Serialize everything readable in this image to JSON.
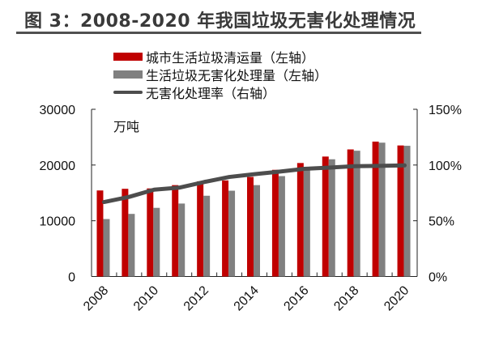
{
  "title": "图 3：2008-2020 年我国垃圾无害化处理情况",
  "chart_data": {
    "type": "bar+line",
    "categories": [
      "2008",
      "2009",
      "2010",
      "2011",
      "2012",
      "2013",
      "2014",
      "2015",
      "2016",
      "2017",
      "2018",
      "2019",
      "2020"
    ],
    "x_tick_labels": [
      "2008",
      "2010",
      "2012",
      "2014",
      "2016",
      "2018",
      "2020"
    ],
    "series": [
      {
        "name": "城市生活垃圾清运量（左轴）",
        "type": "bar",
        "axis": "left",
        "color": "#c00000",
        "values": [
          15438,
          15734,
          15805,
          16395,
          17081,
          17239,
          17860,
          19142,
          20362,
          21521,
          22802,
          24206,
          23512
        ]
      },
      {
        "name": "生活垃圾无害化处理量（左轴）",
        "type": "bar",
        "axis": "left",
        "color": "#808080",
        "values": [
          10307,
          11232,
          12318,
          13090,
          14490,
          15394,
          16394,
          18013,
          19674,
          21034,
          22565,
          24013,
          23452
        ]
      },
      {
        "name": "无害化处理率（右轴）",
        "type": "line",
        "axis": "right",
        "color": "#4d4d4d",
        "values": [
          66.8,
          71.4,
          77.9,
          79.7,
          84.8,
          89.3,
          91.8,
          94.1,
          96.6,
          97.7,
          99.0,
          99.2,
          99.7
        ]
      }
    ],
    "left_axis": {
      "unit_label": "万吨",
      "ylim": [
        0,
        30000
      ],
      "ticks": [
        "0",
        "10000",
        "20000",
        "30000"
      ]
    },
    "right_axis": {
      "ylim": [
        0,
        150
      ],
      "ticks": [
        "0%",
        "50%",
        "100%",
        "150%"
      ]
    },
    "grid": false,
    "legend_position": "top"
  }
}
